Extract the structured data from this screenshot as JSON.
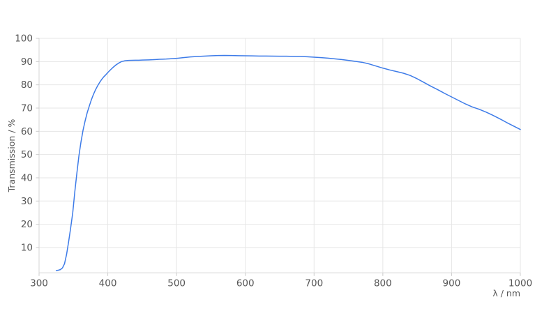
{
  "chart_data": {
    "type": "line",
    "title": "",
    "xlabel": "λ / nm",
    "ylabel": "Transmission / %",
    "xlim": [
      300,
      1000
    ],
    "ylim": [
      -0.9,
      100
    ],
    "xticks": [
      300,
      400,
      500,
      600,
      700,
      800,
      900,
      1000
    ],
    "yticks": [
      10,
      20,
      30,
      40,
      50,
      60,
      70,
      80,
      90,
      100
    ],
    "grid": true,
    "legend": false,
    "series": [
      {
        "name": "Transmission",
        "x": [
          325,
          328,
          331,
          334,
          337,
          340,
          343,
          346,
          349,
          352,
          355,
          358,
          361,
          364,
          367,
          370,
          373,
          376,
          379,
          382,
          385,
          388,
          391,
          394,
          397,
          400,
          404,
          408,
          412,
          416,
          420,
          425,
          430,
          435,
          440,
          445,
          450,
          455,
          460,
          465,
          470,
          475,
          480,
          485,
          490,
          495,
          500,
          510,
          520,
          530,
          540,
          550,
          560,
          570,
          580,
          590,
          600,
          610,
          620,
          630,
          640,
          650,
          660,
          670,
          680,
          690,
          700,
          710,
          720,
          730,
          740,
          750,
          760,
          770,
          780,
          790,
          800,
          810,
          820,
          830,
          840,
          850,
          860,
          870,
          880,
          890,
          900,
          910,
          920,
          930,
          940,
          950,
          960,
          970,
          980,
          990,
          1000
        ],
        "y": [
          0.1,
          0.25,
          0.5,
          1.2,
          3,
          7,
          12.5,
          18.5,
          25,
          34,
          42,
          49.5,
          55.5,
          60.5,
          64.5,
          68,
          70.8,
          73.5,
          75.8,
          77.8,
          79.5,
          81,
          82.3,
          83.4,
          84.3,
          85.3,
          86.5,
          87.6,
          88.6,
          89.4,
          90.0,
          90.35,
          90.5,
          90.55,
          90.6,
          90.6,
          90.65,
          90.7,
          90.75,
          90.8,
          90.9,
          91.0,
          91.05,
          91.1,
          91.2,
          91.3,
          91.4,
          91.7,
          92.0,
          92.2,
          92.35,
          92.5,
          92.6,
          92.65,
          92.6,
          92.55,
          92.5,
          92.45,
          92.4,
          92.4,
          92.35,
          92.3,
          92.3,
          92.25,
          92.2,
          92.1,
          91.9,
          91.7,
          91.5,
          91.2,
          90.9,
          90.5,
          90.1,
          89.7,
          89.0,
          88.1,
          87.2,
          86.4,
          85.7,
          85.0,
          84.0,
          82.6,
          81.0,
          79.4,
          77.9,
          76.3,
          74.8,
          73.3,
          71.8,
          70.5,
          69.5,
          68.3,
          66.9,
          65.4,
          63.8,
          62.3,
          60.8
        ]
      }
    ]
  },
  "colors": {
    "line": "#3d7be8",
    "grid": "#e6e6e6",
    "axis": "#d4d4d4",
    "tick": "#cccccc",
    "label": "#575757",
    "background": "#ffffff"
  }
}
